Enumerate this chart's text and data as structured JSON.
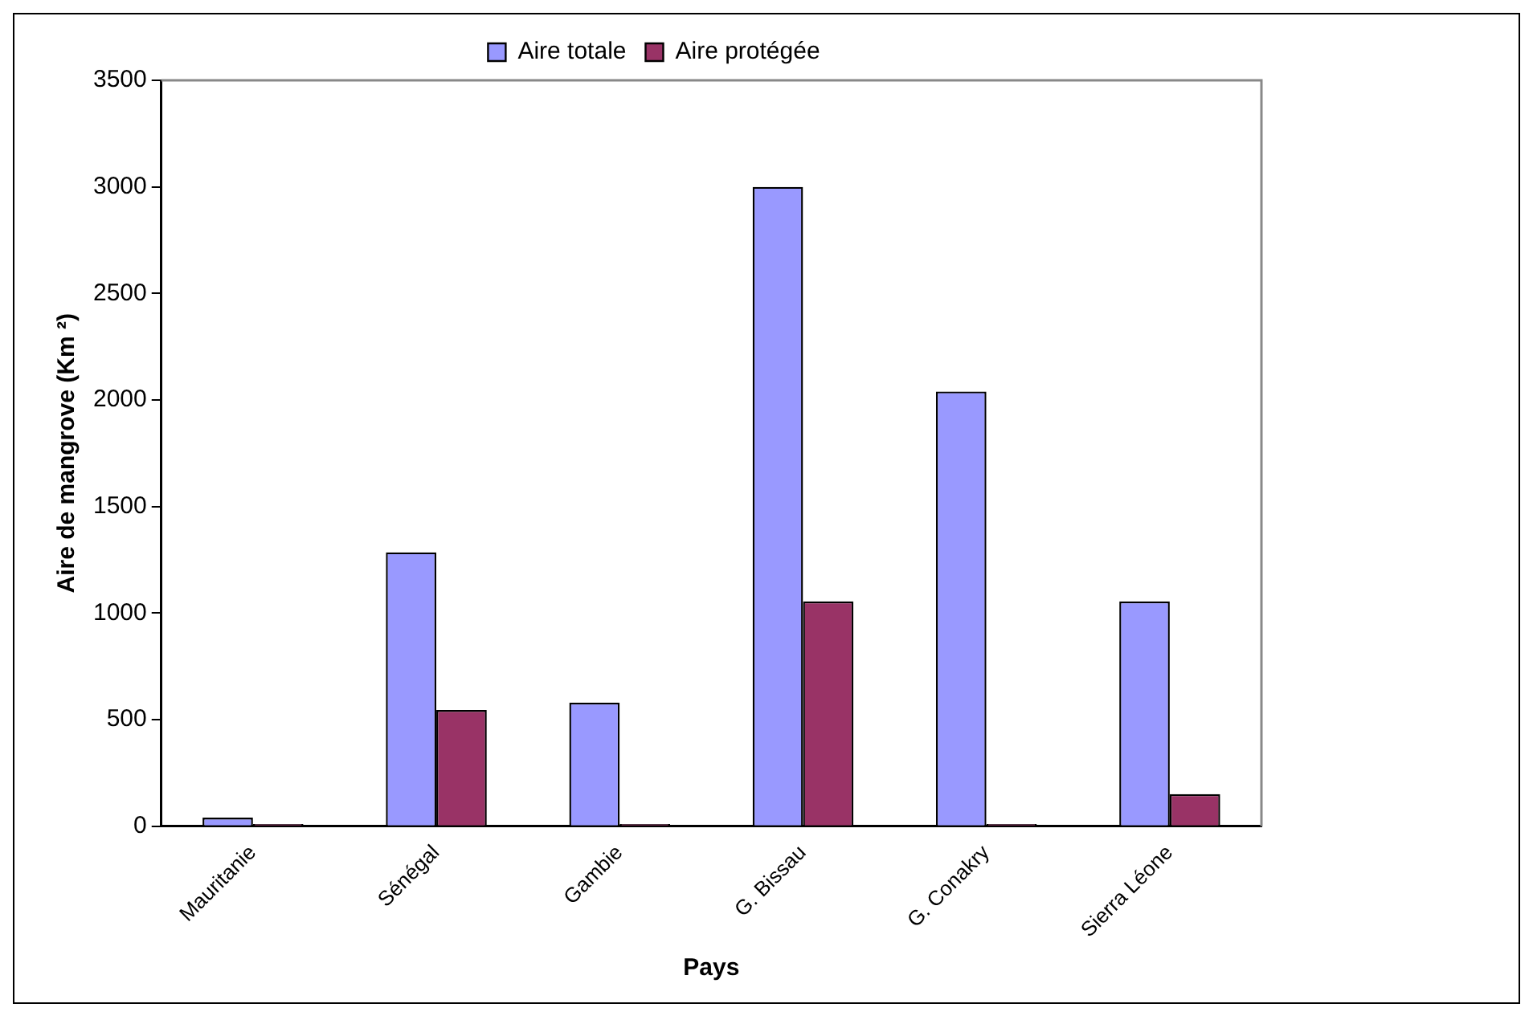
{
  "chart_data": {
    "type": "bar",
    "xlabel": "Pays",
    "ylabel": "Aire de mangrove (Km ²)",
    "categories": [
      "Mauritanie",
      "Sénégal",
      "Gambie",
      "G. Bissau",
      "G. Conakry",
      "Sierra Léone"
    ],
    "series": [
      {
        "name": "Aire totale",
        "color": "#9999ff",
        "values": [
          40,
          1285,
          580,
          3000,
          2040,
          1055
        ]
      },
      {
        "name": "Aire protégée",
        "color": "#993366",
        "values": [
          10,
          545,
          10,
          1055,
          10,
          150
        ]
      }
    ],
    "ylim": [
      0,
      3500
    ],
    "yticks": [
      0,
      500,
      1000,
      1500,
      2000,
      2500,
      3000,
      3500
    ],
    "grid": false,
    "legend": "top"
  }
}
